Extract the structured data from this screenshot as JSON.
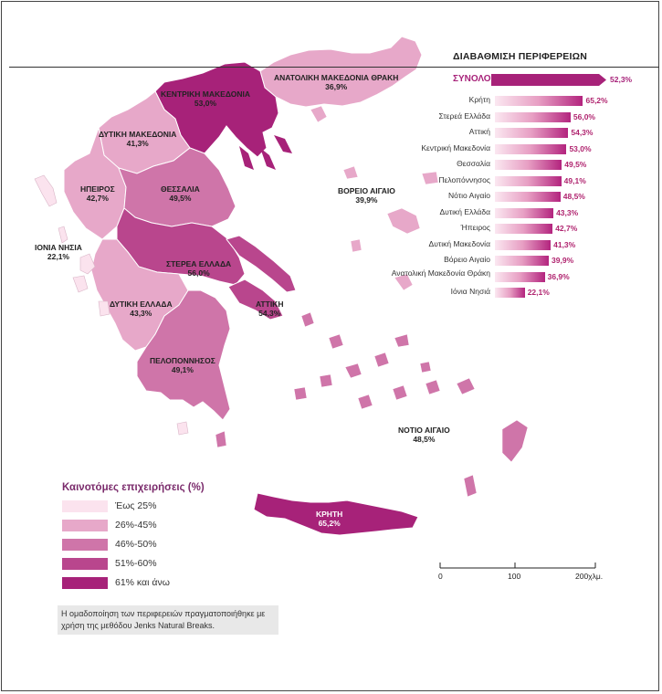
{
  "map_title": "ΔΙΑΒΑΘΜΙΣΗ ΠΕΡΙΦΕΡΕΙΩΝ",
  "total": {
    "label": "ΣΥΝΟΛΟ",
    "value": "52,3%",
    "number": 52.3
  },
  "ranking": [
    {
      "name": "Κρήτη",
      "value": "65,2%",
      "number": 65.2
    },
    {
      "name": "Στερεά Ελλάδα",
      "value": "56,0%",
      "number": 56.0
    },
    {
      "name": "Αττική",
      "value": "54,3%",
      "number": 54.3
    },
    {
      "name": "Κεντρική Μακεδονία",
      "value": "53,0%",
      "number": 53.0
    },
    {
      "name": "Θεσσαλία",
      "value": "49,5%",
      "number": 49.5
    },
    {
      "name": "Πελοπόννησος",
      "value": "49,1%",
      "number": 49.1
    },
    {
      "name": "Νότιο Αιγαίο",
      "value": "48,5%",
      "number": 48.5
    },
    {
      "name": "Δυτική Ελλάδα",
      "value": "43,3%",
      "number": 43.3
    },
    {
      "name": "Ήπειρος",
      "value": "42,7%",
      "number": 42.7
    },
    {
      "name": "Δυτική Μακεδονία",
      "value": "41,3%",
      "number": 41.3
    },
    {
      "name": "Βόρειο Αιγαίο",
      "value": "39,9%",
      "number": 39.9
    },
    {
      "name": "Ανατολική Μακεδονία Θράκη",
      "value": "36,9%",
      "number": 36.9
    },
    {
      "name": "Ιόνια Νησιά",
      "value": "22,1%",
      "number": 22.1
    }
  ],
  "regions": {
    "anatoliki_makedonia_thraki": {
      "name": "ΑΝΑΤΟΛΙΚΗ ΜΑΚΕΔΟΝΙΑ ΘΡΑΚΗ",
      "value": "36,9%"
    },
    "kentriki_makedonia": {
      "name": "ΚΕΝΤΡΙΚΗ ΜΑΚΕΔΟΝΙΑ",
      "value": "53,0%"
    },
    "dytiki_makedonia": {
      "name": "ΔΥΤΙΚΗ ΜΑΚΕΔΟΝΙΑ",
      "value": "41,3%"
    },
    "ipeiros": {
      "name": "ΗΠΕΙΡΟΣ",
      "value": "42,7%"
    },
    "thessalia": {
      "name": "ΘΕΣΣΑΛΙΑ",
      "value": "49,5%"
    },
    "ionia_nisia": {
      "name": "ΙΟΝΙΑ ΝΗΣΙΑ",
      "value": "22,1%"
    },
    "sterea_ellada": {
      "name": "ΣΤΕΡΕΑ ΕΛΛΑΔΑ",
      "value": "56,0%"
    },
    "dytiki_ellada": {
      "name": "ΔΥΤΙΚΗ ΕΛΛΑΔΑ",
      "value": "43,3%"
    },
    "attiki": {
      "name": "ΑΤΤΙΚΗ",
      "value": "54,3%"
    },
    "peloponnisos": {
      "name": "ΠΕΛΟΠΟΝΝΗΣΟΣ",
      "value": "49,1%"
    },
    "voreio_aigaio": {
      "name": "ΒΟΡΕΙΟ ΑΙΓΑΙΟ",
      "value": "39,9%"
    },
    "notio_aigaio": {
      "name": "ΝΟΤΙΟ ΑΙΓΑΙΟ",
      "value": "48,5%"
    },
    "kriti": {
      "name": "ΚΡΗΤΗ",
      "value": "65,2%"
    }
  },
  "legend": {
    "title": "Καινοτόμες επιχειρήσεις (%)",
    "items": [
      {
        "label": "Έως 25%",
        "color": "#fbe3ee"
      },
      {
        "label": "26%-45%",
        "color": "#e7a8c9"
      },
      {
        "label": "46%-50%",
        "color": "#cf75a9"
      },
      {
        "label": "51%-60%",
        "color": "#b9468d"
      },
      {
        "label": "61% και άνω",
        "color": "#a72279"
      }
    ]
  },
  "note": "Η ομαδοποίηση των περιφερειών πραγματοποιήθηκε με χρήση της μεθόδου Jenks Natural Breaks.",
  "scale": {
    "ticks": [
      "0",
      "100",
      "200χλμ."
    ]
  }
}
